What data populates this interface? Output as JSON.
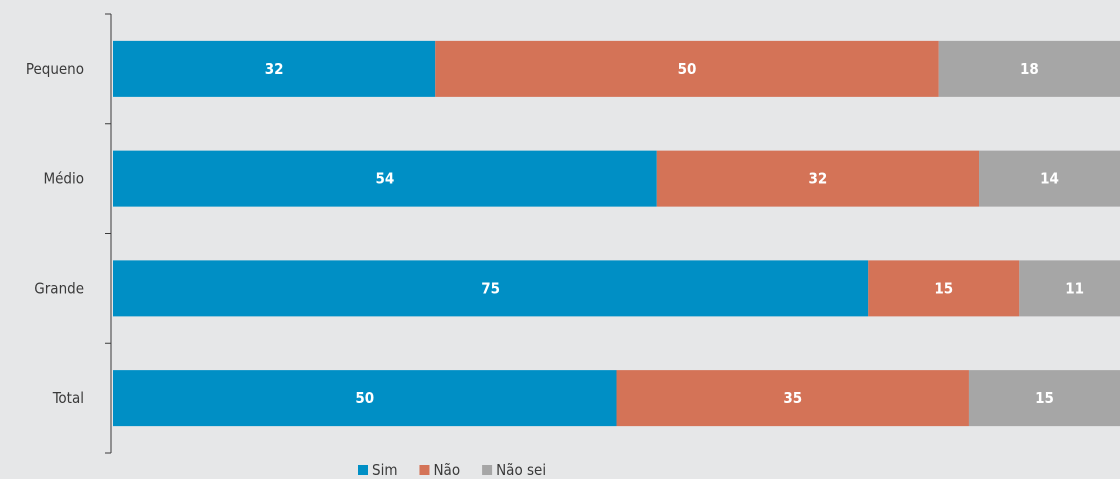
{
  "chart_data": {
    "type": "bar",
    "orientation": "horizontal",
    "stacked": true,
    "categories": [
      "Pequeno",
      "Médio",
      "Grande",
      "Total"
    ],
    "series": [
      {
        "name": "Sim",
        "values": [
          32,
          54,
          75,
          50
        ],
        "color": "#008fc5"
      },
      {
        "name": "Não",
        "values": [
          50,
          32,
          15,
          35
        ],
        "color": "#d47357"
      },
      {
        "name": "Não sei",
        "values": [
          18,
          14,
          11,
          15
        ],
        "color": "#a6a6a6"
      }
    ],
    "title": "",
    "xlabel": "",
    "ylabel": "",
    "xlim": [
      0,
      100
    ],
    "grid": false,
    "legend_position": "bottom",
    "value_label_color": "#ffffff"
  }
}
